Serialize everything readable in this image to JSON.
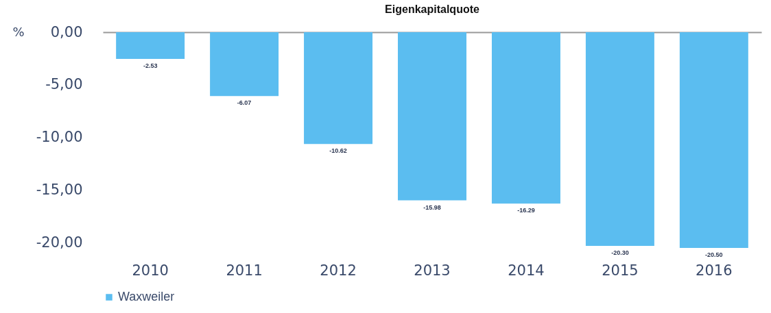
{
  "chart_data": {
    "type": "bar",
    "title": "Eigenkapitalquote",
    "ylabel": "%",
    "categories": [
      "2010",
      "2011",
      "2012",
      "2013",
      "2014",
      "2015",
      "2016"
    ],
    "series": [
      {
        "name": "Waxweiler",
        "color": "#5bbdf0",
        "values": [
          -2.53,
          -6.07,
          -10.62,
          -15.98,
          -16.29,
          -20.3,
          -20.5
        ],
        "value_labels": [
          "-2.53",
          "-6.07",
          "-10.62",
          "-15.98",
          "-16.29",
          "-20.30",
          "-20.50"
        ]
      }
    ],
    "yticks": [
      {
        "value": 0,
        "label": "0,00"
      },
      {
        "value": -5,
        "label": "-5,00"
      },
      {
        "value": -10,
        "label": "-10,00"
      },
      {
        "value": -15,
        "label": "-15,00"
      },
      {
        "value": -20,
        "label": "-20,00"
      }
    ],
    "ylim": [
      -20.5,
      0
    ],
    "grid": false,
    "legend": "bottom"
  }
}
